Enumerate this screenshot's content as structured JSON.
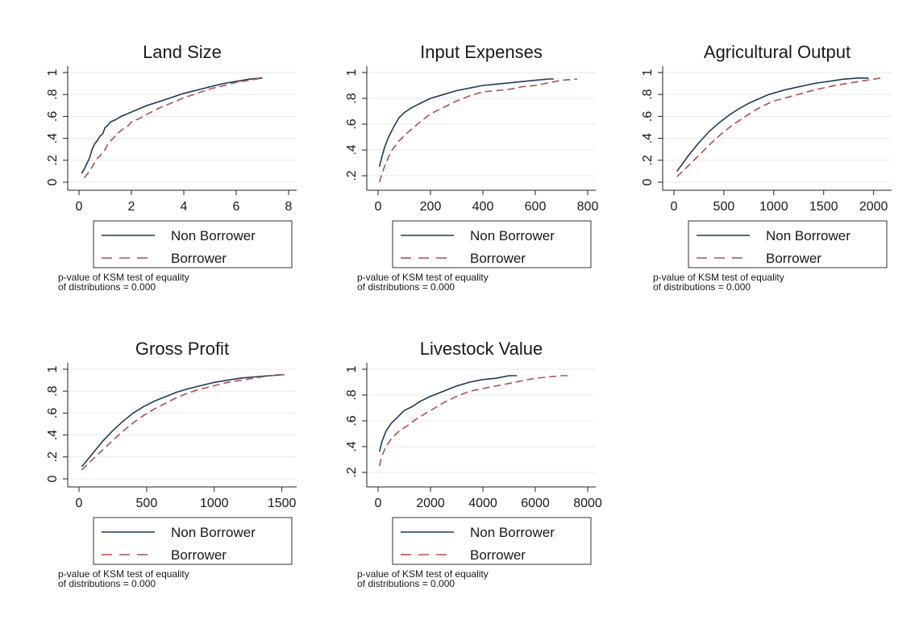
{
  "chart_data": [
    {
      "type": "line",
      "title": "Land Size",
      "xlim": [
        0,
        8
      ],
      "ylim": [
        0,
        1
      ],
      "xticks": [
        "0",
        "2",
        "4",
        "6",
        "8"
      ],
      "yticks": [
        "0",
        ".2",
        ".4",
        ".6",
        ".8",
        "1"
      ],
      "grid": true,
      "series": [
        {
          "name": "Non Borrower",
          "color": "#1f3b5a",
          "style": "solid",
          "x": [
            0.1,
            0.2,
            0.3,
            0.4,
            0.5,
            0.6,
            0.7,
            0.8,
            0.9,
            1.0,
            1.1,
            1.2,
            1.4,
            1.6,
            1.8,
            2.0,
            2.3,
            2.6,
            3.0,
            3.5,
            4.0,
            4.5,
            5.0,
            5.5,
            6.0,
            6.5,
            7.0
          ],
          "y": [
            0.08,
            0.12,
            0.17,
            0.22,
            0.3,
            0.35,
            0.38,
            0.42,
            0.44,
            0.5,
            0.52,
            0.55,
            0.57,
            0.6,
            0.62,
            0.64,
            0.67,
            0.7,
            0.73,
            0.77,
            0.81,
            0.84,
            0.87,
            0.9,
            0.92,
            0.94,
            0.95
          ]
        },
        {
          "name": "Borrower",
          "color": "#b05050",
          "style": "dashed",
          "x": [
            0.2,
            0.3,
            0.4,
            0.5,
            0.6,
            0.7,
            0.8,
            0.9,
            1.0,
            1.1,
            1.3,
            1.5,
            1.7,
            1.9,
            2.0,
            2.3,
            2.6,
            3.0,
            3.5,
            4.0,
            4.5,
            5.0,
            5.5,
            6.0,
            6.5,
            7.0
          ],
          "y": [
            0.04,
            0.07,
            0.1,
            0.14,
            0.18,
            0.22,
            0.24,
            0.27,
            0.3,
            0.35,
            0.4,
            0.45,
            0.49,
            0.52,
            0.55,
            0.58,
            0.62,
            0.67,
            0.72,
            0.77,
            0.81,
            0.85,
            0.88,
            0.91,
            0.93,
            0.95
          ]
        }
      ],
      "legend": [
        "Non Borrower",
        "Borrower"
      ],
      "legend_position": "bottom",
      "note_line1": "p-value of KSM test of equality",
      "note_line2": "of distributions = 0.000"
    },
    {
      "type": "line",
      "title": "Input Expenses",
      "xlim": [
        0,
        800
      ],
      "ylim": [
        0.15,
        1
      ],
      "xticks": [
        "0",
        "200",
        "400",
        "600",
        "800"
      ],
      "yticks": [
        ".2",
        ".4",
        ".6",
        ".8",
        "1"
      ],
      "grid": true,
      "series": [
        {
          "name": "Non Borrower",
          "color": "#1f3b5a",
          "style": "solid",
          "x": [
            5,
            15,
            25,
            40,
            60,
            80,
            100,
            130,
            160,
            200,
            250,
            300,
            350,
            400,
            450,
            500,
            550,
            600,
            650,
            670
          ],
          "y": [
            0.27,
            0.35,
            0.42,
            0.5,
            0.58,
            0.65,
            0.69,
            0.73,
            0.76,
            0.8,
            0.83,
            0.86,
            0.88,
            0.9,
            0.91,
            0.92,
            0.93,
            0.94,
            0.95,
            0.95
          ]
        },
        {
          "name": "Borrower",
          "color": "#b05050",
          "style": "dashed",
          "x": [
            5,
            15,
            30,
            50,
            80,
            110,
            150,
            200,
            250,
            300,
            350,
            400,
            450,
            500,
            550,
            600,
            650,
            700,
            760
          ],
          "y": [
            0.15,
            0.22,
            0.3,
            0.39,
            0.47,
            0.53,
            0.6,
            0.68,
            0.73,
            0.78,
            0.82,
            0.85,
            0.86,
            0.87,
            0.89,
            0.9,
            0.92,
            0.94,
            0.95
          ]
        }
      ],
      "legend": [
        "Non Borrower",
        "Borrower"
      ],
      "legend_position": "bottom",
      "note_line1": "p-value of KSM test of equality",
      "note_line2": "of distributions = 0.000"
    },
    {
      "type": "line",
      "title": "Agricultural Output",
      "xlim": [
        0,
        2100
      ],
      "ylim": [
        0,
        1
      ],
      "xticks": [
        "0",
        "500",
        "1000",
        "1500",
        "2000"
      ],
      "yticks": [
        "0",
        ".2",
        ".4",
        ".6",
        ".8",
        "1"
      ],
      "grid": true,
      "series": [
        {
          "name": "Non Borrower",
          "color": "#1f3b5a",
          "style": "solid",
          "x": [
            30,
            80,
            150,
            250,
            350,
            450,
            550,
            650,
            750,
            850,
            950,
            1100,
            1250,
            1400,
            1550,
            1700,
            1850,
            1950
          ],
          "y": [
            0.1,
            0.16,
            0.25,
            0.36,
            0.46,
            0.54,
            0.61,
            0.67,
            0.72,
            0.76,
            0.8,
            0.84,
            0.87,
            0.9,
            0.92,
            0.94,
            0.95,
            0.95
          ]
        },
        {
          "name": "Borrower",
          "color": "#b05050",
          "style": "dashed",
          "x": [
            30,
            100,
            200,
            300,
            400,
            500,
            600,
            700,
            800,
            900,
            1000,
            1200,
            1400,
            1600,
            1800,
            2000,
            2080
          ],
          "y": [
            0.05,
            0.11,
            0.2,
            0.29,
            0.38,
            0.46,
            0.53,
            0.59,
            0.65,
            0.7,
            0.74,
            0.79,
            0.84,
            0.88,
            0.91,
            0.94,
            0.95
          ]
        }
      ],
      "legend": [
        "Non Borrower",
        "Borrower"
      ],
      "legend_position": "bottom",
      "note_line1": "p-value of KSM test of equality",
      "note_line2": "of distributions = 0.000"
    },
    {
      "type": "line",
      "title": "Gross Profit",
      "xlim": [
        0,
        1550
      ],
      "ylim": [
        0,
        1
      ],
      "xticks": [
        "0",
        "500",
        "1000",
        "1500"
      ],
      "yticks": [
        "0",
        ".2",
        ".4",
        ".6",
        ".8",
        "1"
      ],
      "grid": true,
      "series": [
        {
          "name": "Non Borrower",
          "color": "#1f3b5a",
          "style": "solid",
          "x": [
            20,
            60,
            120,
            180,
            250,
            320,
            400,
            480,
            560,
            640,
            720,
            800,
            900,
            1000,
            1100,
            1200,
            1300,
            1400,
            1500
          ],
          "y": [
            0.11,
            0.17,
            0.26,
            0.35,
            0.44,
            0.52,
            0.6,
            0.66,
            0.71,
            0.75,
            0.79,
            0.82,
            0.85,
            0.88,
            0.9,
            0.92,
            0.93,
            0.94,
            0.95
          ]
        },
        {
          "name": "Borrower",
          "color": "#b05050",
          "style": "dashed",
          "x": [
            20,
            60,
            120,
            180,
            250,
            320,
            400,
            480,
            560,
            640,
            720,
            800,
            900,
            1000,
            1100,
            1200,
            1300,
            1400,
            1520
          ],
          "y": [
            0.08,
            0.13,
            0.2,
            0.27,
            0.35,
            0.43,
            0.51,
            0.58,
            0.64,
            0.69,
            0.74,
            0.78,
            0.82,
            0.85,
            0.88,
            0.9,
            0.92,
            0.94,
            0.95
          ]
        }
      ],
      "legend": [
        "Non Borrower",
        "Borrower"
      ],
      "legend_position": "bottom",
      "note_line1": "p-value of KSM test of equality",
      "note_line2": "of distributions = 0.000"
    },
    {
      "type": "line",
      "title": "Livestock Value",
      "xlim": [
        0,
        8000
      ],
      "ylim": [
        0.15,
        1
      ],
      "xticks": [
        "0",
        "2000",
        "4000",
        "6000",
        "8000"
      ],
      "yticks": [
        ".2",
        ".4",
        ".6",
        ".8",
        "1"
      ],
      "grid": true,
      "series": [
        {
          "name": "Non Borrower",
          "color": "#1f3b5a",
          "style": "solid",
          "x": [
            50,
            150,
            300,
            500,
            750,
            1000,
            1300,
            1600,
            2000,
            2500,
            3000,
            3500,
            4000,
            4500,
            5000,
            5300
          ],
          "y": [
            0.36,
            0.44,
            0.52,
            0.58,
            0.63,
            0.68,
            0.71,
            0.75,
            0.79,
            0.83,
            0.87,
            0.9,
            0.92,
            0.93,
            0.95,
            0.95
          ]
        },
        {
          "name": "Borrower",
          "color": "#b05050",
          "style": "dashed",
          "x": [
            50,
            150,
            300,
            500,
            800,
            1100,
            1500,
            2000,
            2500,
            3000,
            3500,
            4000,
            4500,
            5000,
            5500,
            6000,
            6500,
            7000,
            7400
          ],
          "y": [
            0.25,
            0.33,
            0.4,
            0.46,
            0.52,
            0.56,
            0.62,
            0.68,
            0.74,
            0.79,
            0.83,
            0.85,
            0.87,
            0.89,
            0.91,
            0.93,
            0.94,
            0.95,
            0.95
          ]
        }
      ],
      "legend": [
        "Non Borrower",
        "Borrower"
      ],
      "legend_position": "bottom",
      "note_line1": "p-value of KSM test of equality",
      "note_line2": "of distributions = 0.000"
    }
  ]
}
